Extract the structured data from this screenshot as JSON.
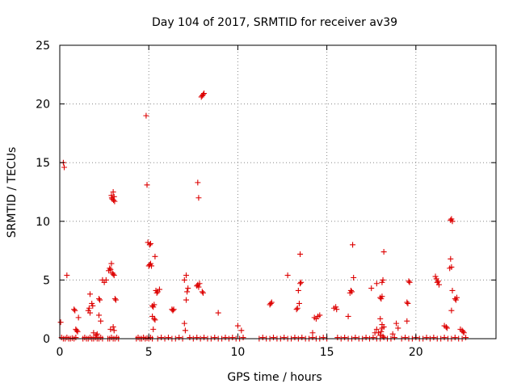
{
  "chart_data": {
    "type": "scatter",
    "title": "Day 104 of 2017, SRMTID for receiver av39",
    "xlabel": "GPS time / hours",
    "ylabel": "SRMTID / TECUs",
    "xlim": [
      0,
      24.5
    ],
    "ylim": [
      0,
      25
    ],
    "xticks": [
      0,
      5,
      10,
      15,
      20
    ],
    "yticks": [
      0,
      5,
      10,
      15,
      20,
      25
    ],
    "grid": true,
    "marker": "plus",
    "color": "#dd0000",
    "series": [
      {
        "name": "SRMTID",
        "points": [
          [
            0.05,
            1.4
          ],
          [
            0.2,
            15.0
          ],
          [
            0.25,
            14.6
          ],
          [
            0.4,
            5.4
          ],
          [
            0.1,
            0.1
          ],
          [
            0.2,
            0.0
          ],
          [
            0.3,
            0.0
          ],
          [
            0.4,
            0.1
          ],
          [
            0.5,
            0.0
          ],
          [
            0.6,
            0.0
          ],
          [
            0.7,
            0.05
          ],
          [
            0.8,
            0.0
          ],
          [
            0.9,
            0.1
          ],
          [
            0.8,
            2.5
          ],
          [
            0.85,
            2.4
          ],
          [
            0.9,
            0.8
          ],
          [
            0.95,
            0.7
          ],
          [
            1.0,
            0.6
          ],
          [
            1.05,
            1.8
          ],
          [
            1.3,
            0.0
          ],
          [
            1.4,
            0.1
          ],
          [
            1.5,
            0.0
          ],
          [
            1.6,
            0.0
          ],
          [
            1.7,
            0.1
          ],
          [
            1.8,
            0.0
          ],
          [
            1.9,
            0.0
          ],
          [
            2.0,
            0.1
          ],
          [
            2.1,
            0.0
          ],
          [
            2.2,
            0.0
          ],
          [
            2.3,
            0.1
          ],
          [
            2.4,
            0.0
          ],
          [
            1.6,
            2.4
          ],
          [
            1.65,
            2.6
          ],
          [
            1.7,
            2.2
          ],
          [
            1.8,
            3.0
          ],
          [
            1.85,
            2.8
          ],
          [
            1.7,
            3.8
          ],
          [
            1.9,
            0.5
          ],
          [
            2.05,
            0.3
          ],
          [
            2.1,
            0.4
          ],
          [
            2.2,
            3.4
          ],
          [
            2.25,
            3.3
          ],
          [
            2.2,
            2.0
          ],
          [
            2.3,
            1.5
          ],
          [
            2.4,
            5.0
          ],
          [
            2.5,
            4.8
          ],
          [
            2.6,
            5.0
          ],
          [
            2.7,
            0.0
          ],
          [
            2.8,
            0.0
          ],
          [
            2.9,
            0.1
          ],
          [
            3.0,
            0.0
          ],
          [
            3.1,
            0.0
          ],
          [
            3.2,
            0.1
          ],
          [
            3.3,
            0.0
          ],
          [
            2.75,
            5.8
          ],
          [
            2.8,
            6.0
          ],
          [
            2.85,
            5.9
          ],
          [
            2.9,
            6.4
          ],
          [
            2.95,
            5.6
          ],
          [
            3.0,
            5.5
          ],
          [
            3.05,
            5.4
          ],
          [
            2.9,
            12.2
          ],
          [
            2.92,
            12.0
          ],
          [
            2.95,
            11.9
          ],
          [
            3.0,
            12.5
          ],
          [
            3.02,
            11.8
          ],
          [
            3.05,
            12.1
          ],
          [
            3.08,
            11.7
          ],
          [
            3.1,
            3.4
          ],
          [
            3.15,
            3.3
          ],
          [
            3.0,
            1.0
          ],
          [
            3.05,
            0.7
          ],
          [
            2.85,
            0.8
          ],
          [
            4.3,
            0.0
          ],
          [
            4.4,
            0.1
          ],
          [
            4.5,
            0.0
          ],
          [
            4.6,
            0.0
          ],
          [
            4.7,
            0.1
          ],
          [
            4.8,
            0.0
          ],
          [
            4.9,
            0.05
          ],
          [
            5.0,
            0.0
          ],
          [
            5.1,
            0.1
          ],
          [
            5.2,
            0.0
          ],
          [
            4.85,
            19.0
          ],
          [
            4.9,
            13.1
          ],
          [
            4.95,
            8.2
          ],
          [
            5.05,
            8.0
          ],
          [
            5.1,
            8.1
          ],
          [
            5.0,
            6.2
          ],
          [
            5.05,
            6.3
          ],
          [
            5.1,
            6.4
          ],
          [
            5.15,
            6.2
          ],
          [
            5.2,
            2.8
          ],
          [
            5.25,
            2.7
          ],
          [
            5.3,
            2.9
          ],
          [
            5.2,
            1.9
          ],
          [
            5.3,
            1.7
          ],
          [
            5.35,
            1.6
          ],
          [
            5.25,
            0.8
          ],
          [
            5.35,
            7.0
          ],
          [
            5.4,
            4.1
          ],
          [
            5.5,
            4.0
          ],
          [
            5.6,
            4.2
          ],
          [
            5.45,
            3.9
          ],
          [
            5.5,
            0.0
          ],
          [
            5.7,
            0.1
          ],
          [
            5.9,
            0.0
          ],
          [
            6.1,
            0.1
          ],
          [
            6.3,
            0.0
          ],
          [
            6.5,
            0.0
          ],
          [
            6.7,
            0.1
          ],
          [
            6.9,
            0.0
          ],
          [
            6.3,
            2.5
          ],
          [
            6.35,
            2.4
          ],
          [
            6.4,
            2.5
          ],
          [
            7.0,
            1.3
          ],
          [
            7.05,
            0.7
          ],
          [
            7.1,
            3.3
          ],
          [
            7.15,
            4.0
          ],
          [
            7.2,
            4.3
          ],
          [
            7.0,
            5.0
          ],
          [
            7.1,
            5.4
          ],
          [
            7.3,
            0.1
          ],
          [
            7.5,
            0.0
          ],
          [
            7.7,
            0.1
          ],
          [
            7.9,
            0.0
          ],
          [
            8.1,
            0.1
          ],
          [
            8.3,
            0.0
          ],
          [
            8.5,
            0.0
          ],
          [
            8.7,
            0.1
          ],
          [
            8.9,
            0.0
          ],
          [
            9.1,
            0.0
          ],
          [
            9.3,
            0.1
          ],
          [
            9.5,
            0.0
          ],
          [
            9.7,
            0.1
          ],
          [
            9.9,
            0.0
          ],
          [
            10.1,
            0.0
          ],
          [
            10.3,
            0.1
          ],
          [
            7.7,
            4.5
          ],
          [
            7.75,
            4.6
          ],
          [
            7.8,
            4.4
          ],
          [
            7.85,
            4.7
          ],
          [
            7.75,
            13.3
          ],
          [
            7.8,
            12.0
          ],
          [
            7.95,
            20.6
          ],
          [
            8.0,
            20.7
          ],
          [
            8.05,
            20.8
          ],
          [
            8.1,
            20.9
          ],
          [
            8.0,
            4.0
          ],
          [
            8.05,
            3.9
          ],
          [
            8.9,
            2.2
          ],
          [
            10.0,
            1.1
          ],
          [
            10.2,
            0.7
          ],
          [
            11.2,
            0.0
          ],
          [
            11.4,
            0.1
          ],
          [
            11.6,
            0.0
          ],
          [
            11.8,
            0.0
          ],
          [
            12.0,
            0.1
          ],
          [
            12.2,
            0.0
          ],
          [
            12.4,
            0.0
          ],
          [
            12.6,
            0.1
          ],
          [
            12.8,
            0.0
          ],
          [
            13.0,
            0.0
          ],
          [
            13.2,
            0.1
          ],
          [
            13.4,
            0.0
          ],
          [
            13.6,
            0.1
          ],
          [
            13.8,
            0.0
          ],
          [
            14.0,
            0.0
          ],
          [
            14.2,
            0.1
          ],
          [
            14.4,
            0.0
          ],
          [
            14.6,
            0.0
          ],
          [
            14.8,
            0.1
          ],
          [
            15.0,
            0.0
          ],
          [
            11.8,
            2.9
          ],
          [
            11.85,
            3.0
          ],
          [
            11.9,
            3.1
          ],
          [
            12.8,
            5.4
          ],
          [
            13.3,
            2.5
          ],
          [
            13.35,
            2.6
          ],
          [
            13.4,
            4.1
          ],
          [
            13.5,
            4.7
          ],
          [
            13.55,
            4.8
          ],
          [
            13.45,
            3.0
          ],
          [
            13.5,
            7.2
          ],
          [
            14.2,
            0.5
          ],
          [
            14.3,
            1.8
          ],
          [
            14.4,
            1.7
          ],
          [
            14.5,
            1.9
          ],
          [
            14.6,
            2.0
          ],
          [
            15.4,
            2.6
          ],
          [
            15.5,
            2.7
          ],
          [
            15.55,
            2.5
          ],
          [
            15.6,
            0.1
          ],
          [
            15.8,
            0.0
          ],
          [
            16.0,
            0.1
          ],
          [
            16.2,
            0.0
          ],
          [
            16.4,
            0.0
          ],
          [
            16.6,
            0.1
          ],
          [
            16.8,
            0.0
          ],
          [
            17.0,
            0.0
          ],
          [
            17.2,
            0.1
          ],
          [
            17.4,
            0.0
          ],
          [
            17.6,
            0.1
          ],
          [
            17.8,
            0.0
          ],
          [
            18.0,
            0.0
          ],
          [
            18.2,
            0.1
          ],
          [
            18.4,
            0.0
          ],
          [
            18.6,
            0.0
          ],
          [
            18.8,
            0.1
          ],
          [
            16.2,
            1.9
          ],
          [
            16.3,
            3.9
          ],
          [
            16.35,
            4.1
          ],
          [
            16.4,
            4.0
          ],
          [
            16.45,
            8.0
          ],
          [
            16.5,
            5.2
          ],
          [
            17.5,
            4.3
          ],
          [
            17.8,
            4.7
          ],
          [
            17.7,
            0.5
          ],
          [
            17.8,
            0.8
          ],
          [
            17.9,
            0.5
          ],
          [
            18.0,
            3.5
          ],
          [
            18.05,
            3.4
          ],
          [
            18.1,
            3.6
          ],
          [
            18.1,
            4.8
          ],
          [
            18.15,
            5.0
          ],
          [
            18.2,
            7.4
          ],
          [
            18.0,
            1.7
          ],
          [
            18.1,
            1.2
          ],
          [
            18.0,
            0.3
          ],
          [
            18.05,
            0.6
          ],
          [
            18.1,
            0.9
          ],
          [
            18.15,
            0.2
          ],
          [
            18.2,
            1.0
          ],
          [
            18.7,
            0.4
          ],
          [
            18.9,
            1.3
          ],
          [
            19.0,
            0.9
          ],
          [
            19.2,
            0.0
          ],
          [
            19.4,
            0.1
          ],
          [
            19.6,
            0.0
          ],
          [
            19.8,
            0.0
          ],
          [
            20.0,
            0.1
          ],
          [
            20.2,
            0.0
          ],
          [
            20.4,
            0.0
          ],
          [
            20.6,
            0.1
          ],
          [
            19.5,
            3.1
          ],
          [
            19.55,
            3.0
          ],
          [
            19.6,
            4.9
          ],
          [
            19.65,
            4.8
          ],
          [
            19.5,
            1.5
          ],
          [
            20.8,
            0.0
          ],
          [
            21.0,
            0.1
          ],
          [
            21.2,
            0.0
          ],
          [
            21.4,
            0.0
          ],
          [
            21.6,
            0.1
          ],
          [
            21.8,
            0.0
          ],
          [
            22.0,
            0.0
          ],
          [
            22.2,
            0.1
          ],
          [
            22.4,
            0.0
          ],
          [
            22.6,
            0.0
          ],
          [
            22.8,
            0.1
          ],
          [
            21.1,
            5.3
          ],
          [
            21.15,
            5.1
          ],
          [
            21.2,
            4.8
          ],
          [
            21.25,
            4.9
          ],
          [
            21.3,
            4.6
          ],
          [
            21.6,
            1.1
          ],
          [
            21.7,
            1.0
          ],
          [
            21.75,
            0.9
          ],
          [
            21.95,
            10.1
          ],
          [
            22.0,
            10.2
          ],
          [
            22.05,
            10.0
          ],
          [
            21.95,
            6.8
          ],
          [
            21.9,
            6.0
          ],
          [
            22.0,
            6.1
          ],
          [
            22.05,
            4.1
          ],
          [
            22.0,
            2.4
          ],
          [
            22.2,
            3.4
          ],
          [
            22.25,
            3.3
          ],
          [
            22.3,
            3.5
          ],
          [
            22.5,
            0.8
          ],
          [
            22.6,
            0.7
          ],
          [
            22.65,
            0.6
          ],
          [
            22.7,
            0.5
          ]
        ]
      }
    ]
  }
}
